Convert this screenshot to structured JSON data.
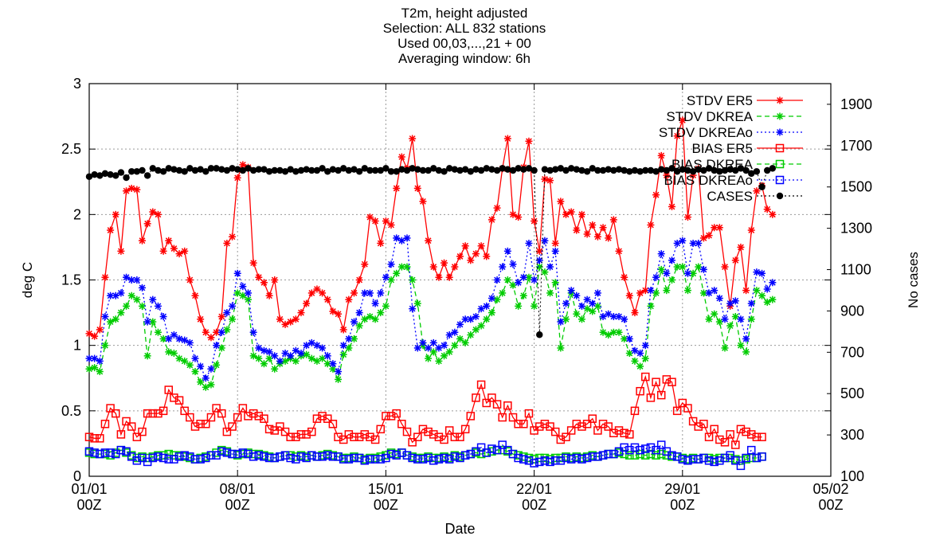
{
  "chart_data": {
    "type": "line",
    "title": [
      "T2m, height adjusted",
      "Selection: ALL    832 stations",
      "Used 00,03,...,21 + 00",
      "Averaging window:  6h"
    ],
    "xlabel": "Date",
    "ylabel": "deg C",
    "y2label": "No cases",
    "xlim": [
      0,
      35
    ],
    "ylim": [
      0,
      3
    ],
    "y2lim": [
      100,
      2000
    ],
    "x_ticks": [
      {
        "x": 0,
        "line1": "01/01",
        "line2": "00Z"
      },
      {
        "x": 7,
        "line1": "08/01",
        "line2": "00Z"
      },
      {
        "x": 14,
        "line1": "15/01",
        "line2": "00Z"
      },
      {
        "x": 21,
        "line1": "22/01",
        "line2": "00Z"
      },
      {
        "x": 28,
        "line1": "29/01",
        "line2": "00Z"
      },
      {
        "x": 35,
        "line1": "05/02",
        "line2": "00Z"
      }
    ],
    "y_ticks": [
      "0",
      "0.5",
      "1",
      "1.5",
      "2",
      "2.5",
      "3"
    ],
    "y2_ticks": [
      "100",
      "300",
      "500",
      "700",
      "900",
      "1100",
      "1300",
      "1500",
      "1700",
      "1900"
    ],
    "grid": true,
    "legend_position": "top-right",
    "x_step_days": 0.25,
    "series": [
      {
        "name": "STDV ER5",
        "color": "#ff0000",
        "style": "solid",
        "marker": "star",
        "axis": "left",
        "values": [
          1.09,
          1.07,
          1.12,
          1.52,
          1.88,
          2.0,
          1.72,
          2.18,
          2.2,
          2.19,
          1.8,
          1.93,
          2.02,
          2.0,
          1.72,
          1.8,
          1.74,
          1.7,
          1.72,
          1.5,
          1.38,
          1.2,
          1.1,
          1.06,
          1.1,
          1.22,
          1.78,
          1.83,
          2.28,
          2.38,
          2.36,
          1.63,
          1.52,
          1.48,
          1.38,
          1.5,
          1.2,
          1.16,
          1.18,
          1.2,
          1.25,
          1.32,
          1.4,
          1.43,
          1.4,
          1.35,
          1.26,
          1.24,
          1.12,
          1.35,
          1.4,
          1.5,
          1.62,
          1.98,
          1.95,
          1.78,
          1.95,
          1.92,
          2.2,
          2.44,
          2.35,
          2.58,
          2.2,
          2.1,
          1.8,
          1.6,
          1.52,
          1.63,
          1.52,
          1.6,
          1.68,
          1.76,
          1.65,
          1.7,
          1.76,
          1.68,
          1.96,
          2.05,
          2.35,
          2.58,
          2.0,
          1.98,
          2.36,
          2.56,
          1.95,
          1.72,
          2.27,
          2.26,
          1.78,
          2.1,
          2.0,
          2.02,
          1.88,
          2.0,
          1.85,
          1.92,
          1.83,
          1.9,
          1.82,
          1.96,
          1.72,
          1.52,
          1.38,
          1.25,
          1.4,
          1.42,
          1.92,
          2.15,
          2.45,
          2.3,
          2.06,
          2.6,
          2.72,
          1.98,
          2.3,
          2.35,
          1.82,
          1.84,
          1.9,
          1.9,
          1.6,
          1.3,
          1.65,
          1.75,
          1.42,
          1.88,
          2.18,
          2.22,
          2.04,
          2.0
        ]
      },
      {
        "name": "STDV DKREA",
        "color": "#00cc00",
        "style": "dashed",
        "marker": "star",
        "axis": "left",
        "values": [
          0.82,
          0.83,
          0.8,
          1.0,
          1.18,
          1.2,
          1.25,
          1.3,
          1.38,
          1.35,
          1.3,
          0.92,
          1.18,
          1.1,
          1.05,
          0.95,
          0.94,
          0.9,
          0.88,
          0.85,
          0.8,
          0.72,
          0.68,
          0.7,
          0.85,
          0.98,
          1.12,
          1.2,
          1.4,
          1.38,
          1.35,
          0.92,
          0.9,
          0.86,
          0.9,
          0.82,
          0.86,
          0.88,
          0.9,
          0.88,
          0.92,
          0.93,
          0.9,
          0.88,
          0.9,
          0.86,
          0.82,
          0.74,
          0.93,
          0.98,
          1.05,
          1.15,
          1.2,
          1.22,
          1.2,
          1.25,
          1.3,
          1.5,
          1.55,
          1.6,
          1.6,
          1.5,
          1.32,
          1.0,
          0.9,
          0.95,
          0.88,
          0.92,
          0.95,
          1.0,
          1.05,
          1.02,
          1.08,
          1.12,
          1.15,
          1.2,
          1.25,
          1.35,
          1.4,
          1.5,
          1.46,
          1.3,
          1.38,
          1.52,
          1.3,
          1.6,
          1.56,
          1.4,
          1.48,
          0.98,
          1.2,
          1.4,
          1.24,
          1.2,
          1.28,
          1.26,
          1.3,
          1.1,
          1.08,
          1.1,
          1.1,
          1.05,
          0.94,
          0.88,
          0.84,
          0.9,
          1.3,
          1.4,
          1.58,
          1.42,
          1.5,
          1.6,
          1.6,
          1.42,
          1.55,
          1.6,
          1.4,
          1.2,
          1.24,
          1.18,
          0.98,
          1.15,
          1.22,
          1.0,
          0.95,
          1.2,
          1.42,
          1.38,
          1.33,
          1.35
        ]
      },
      {
        "name": "STDV DKREAo",
        "color": "#0000ff",
        "style": "dotted",
        "marker": "star",
        "axis": "left",
        "values": [
          0.9,
          0.9,
          0.88,
          1.22,
          1.38,
          1.38,
          1.4,
          1.52,
          1.5,
          1.5,
          1.44,
          1.18,
          1.35,
          1.3,
          1.22,
          1.05,
          1.08,
          1.05,
          1.04,
          1.02,
          0.9,
          0.84,
          0.75,
          0.82,
          1.0,
          1.1,
          1.25,
          1.3,
          1.55,
          1.45,
          1.4,
          1.1,
          0.98,
          0.96,
          0.95,
          0.92,
          0.88,
          0.94,
          0.92,
          0.96,
          0.94,
          1.0,
          1.02,
          1.0,
          0.98,
          0.92,
          0.86,
          0.8,
          1.0,
          1.05,
          1.18,
          1.25,
          1.4,
          1.4,
          1.32,
          1.4,
          1.52,
          1.62,
          1.82,
          1.8,
          1.82,
          1.28,
          0.98,
          1.02,
          0.98,
          1.02,
          0.98,
          1.0,
          1.08,
          1.1,
          1.16,
          1.2,
          1.2,
          1.22,
          1.28,
          1.3,
          1.36,
          1.5,
          1.6,
          1.72,
          1.62,
          1.48,
          1.52,
          1.78,
          1.5,
          1.65,
          1.8,
          1.6,
          1.72,
          1.18,
          1.32,
          1.42,
          1.38,
          1.3,
          1.35,
          1.32,
          1.4,
          1.22,
          1.24,
          1.22,
          1.22,
          1.2,
          1.05,
          0.96,
          0.94,
          1.0,
          1.42,
          1.52,
          1.7,
          1.55,
          1.65,
          1.78,
          1.8,
          1.55,
          1.78,
          1.78,
          1.58,
          1.4,
          1.42,
          1.36,
          1.2,
          1.32,
          1.34,
          1.2,
          1.05,
          1.32,
          1.56,
          1.55,
          1.43,
          1.48
        ]
      },
      {
        "name": "BIAS ER5",
        "color": "#ff0000",
        "style": "solid",
        "marker": "square",
        "axis": "left",
        "values": [
          0.3,
          0.29,
          0.29,
          0.4,
          0.52,
          0.48,
          0.32,
          0.42,
          0.38,
          0.3,
          0.34,
          0.48,
          0.48,
          0.48,
          0.5,
          0.66,
          0.6,
          0.58,
          0.5,
          0.45,
          0.38,
          0.4,
          0.4,
          0.45,
          0.52,
          0.48,
          0.34,
          0.38,
          0.45,
          0.52,
          0.46,
          0.48,
          0.46,
          0.44,
          0.36,
          0.35,
          0.38,
          0.34,
          0.3,
          0.3,
          0.32,
          0.32,
          0.34,
          0.44,
          0.46,
          0.44,
          0.4,
          0.3,
          0.28,
          0.32,
          0.3,
          0.3,
          0.32,
          0.3,
          0.28,
          0.36,
          0.46,
          0.46,
          0.48,
          0.4,
          0.34,
          0.26,
          0.3,
          0.36,
          0.34,
          0.32,
          0.3,
          0.28,
          0.35,
          0.3,
          0.3,
          0.36,
          0.46,
          0.6,
          0.7,
          0.56,
          0.6,
          0.55,
          0.45,
          0.54,
          0.45,
          0.4,
          0.4,
          0.48,
          0.35,
          0.38,
          0.4,
          0.38,
          0.34,
          0.28,
          0.3,
          0.35,
          0.4,
          0.38,
          0.4,
          0.44,
          0.35,
          0.4,
          0.38,
          0.33,
          0.35,
          0.33,
          0.32,
          0.5,
          0.65,
          0.76,
          0.6,
          0.72,
          0.62,
          0.74,
          0.72,
          0.5,
          0.56,
          0.52,
          0.42,
          0.38,
          0.4,
          0.3,
          0.36,
          0.28,
          0.26,
          0.32,
          0.24,
          0.36,
          0.34,
          0.32,
          0.3,
          0.3
        ]
      },
      {
        "name": "BIAS DKREA",
        "color": "#00cc00",
        "style": "dashed",
        "marker": "square",
        "axis": "left",
        "values": [
          0.18,
          0.17,
          0.17,
          0.17,
          0.16,
          0.18,
          0.2,
          0.18,
          0.16,
          0.14,
          0.15,
          0.14,
          0.15,
          0.16,
          0.16,
          0.17,
          0.16,
          0.16,
          0.15,
          0.14,
          0.13,
          0.14,
          0.15,
          0.16,
          0.18,
          0.2,
          0.19,
          0.17,
          0.16,
          0.17,
          0.18,
          0.17,
          0.17,
          0.16,
          0.15,
          0.14,
          0.15,
          0.16,
          0.16,
          0.15,
          0.16,
          0.15,
          0.16,
          0.15,
          0.16,
          0.17,
          0.16,
          0.15,
          0.14,
          0.14,
          0.15,
          0.14,
          0.13,
          0.14,
          0.14,
          0.15,
          0.16,
          0.18,
          0.17,
          0.18,
          0.16,
          0.15,
          0.14,
          0.14,
          0.15,
          0.14,
          0.14,
          0.15,
          0.14,
          0.16,
          0.15,
          0.16,
          0.17,
          0.18,
          0.17,
          0.18,
          0.19,
          0.2,
          0.2,
          0.19,
          0.17,
          0.16,
          0.15,
          0.14,
          0.13,
          0.14,
          0.14,
          0.13,
          0.14,
          0.14,
          0.15,
          0.14,
          0.15,
          0.14,
          0.15,
          0.16,
          0.15,
          0.16,
          0.17,
          0.17,
          0.18,
          0.17,
          0.16,
          0.16,
          0.17,
          0.16,
          0.17,
          0.16,
          0.17,
          0.16,
          0.15,
          0.15,
          0.14,
          0.13,
          0.14,
          0.13,
          0.14,
          0.14,
          0.13,
          0.14,
          0.14,
          0.14,
          0.13,
          0.12,
          0.13,
          0.14,
          0.14,
          0.15
        ]
      },
      {
        "name": "BIAS DKREAo",
        "color": "#0000ff",
        "style": "dotted",
        "marker": "square",
        "axis": "left",
        "values": [
          0.19,
          0.18,
          0.17,
          0.18,
          0.18,
          0.17,
          0.2,
          0.19,
          0.15,
          0.12,
          0.14,
          0.11,
          0.14,
          0.15,
          0.14,
          0.13,
          0.13,
          0.15,
          0.16,
          0.15,
          0.13,
          0.13,
          0.14,
          0.16,
          0.16,
          0.19,
          0.18,
          0.17,
          0.17,
          0.18,
          0.17,
          0.15,
          0.16,
          0.15,
          0.14,
          0.14,
          0.15,
          0.16,
          0.14,
          0.13,
          0.15,
          0.14,
          0.16,
          0.15,
          0.15,
          0.16,
          0.15,
          0.15,
          0.13,
          0.13,
          0.14,
          0.14,
          0.12,
          0.13,
          0.13,
          0.13,
          0.14,
          0.17,
          0.16,
          0.18,
          0.16,
          0.14,
          0.13,
          0.13,
          0.14,
          0.12,
          0.13,
          0.14,
          0.13,
          0.15,
          0.14,
          0.16,
          0.17,
          0.19,
          0.22,
          0.18,
          0.21,
          0.2,
          0.24,
          0.2,
          0.17,
          0.14,
          0.13,
          0.12,
          0.1,
          0.11,
          0.12,
          0.11,
          0.12,
          0.12,
          0.14,
          0.13,
          0.14,
          0.13,
          0.14,
          0.15,
          0.15,
          0.16,
          0.17,
          0.17,
          0.19,
          0.22,
          0.2,
          0.22,
          0.2,
          0.21,
          0.22,
          0.2,
          0.24,
          0.19,
          0.16,
          0.15,
          0.13,
          0.12,
          0.13,
          0.13,
          0.14,
          0.12,
          0.11,
          0.12,
          0.14,
          0.16,
          0.12,
          0.08,
          0.14,
          0.2,
          0.14,
          0.15
        ]
      },
      {
        "name": "CASES",
        "color": "#000000",
        "style": "dotted",
        "marker": "dot",
        "axis": "right",
        "values": [
          1550,
          1560,
          1555,
          1565,
          1560,
          1555,
          1570,
          1545,
          1575,
          1575,
          1580,
          1555,
          1590,
          1580,
          1575,
          1590,
          1585,
          1580,
          1575,
          1590,
          1580,
          1585,
          1575,
          1590,
          1590,
          1585,
          1580,
          1590,
          1585,
          1580,
          1590,
          1580,
          1585,
          1585,
          1575,
          1580,
          1580,
          1575,
          1585,
          1575,
          1580,
          1585,
          1580,
          1580,
          1590,
          1575,
          1585,
          1580,
          1590,
          1580,
          1585,
          1575,
          1590,
          1580,
          1580,
          1580,
          1590,
          1575,
          1575,
          1585,
          1580,
          1590,
          1585,
          1580,
          1580,
          1590,
          1580,
          1575,
          1590,
          1585,
          1580,
          1585,
          1575,
          1585,
          1580,
          1590,
          1585,
          1580,
          1590,
          1585,
          1580,
          1590,
          1585,
          1590,
          1580,
          785,
          1585,
          1580,
          1585,
          1590,
          1580,
          1590,
          1585,
          1580,
          1575,
          1590,
          1580,
          1580,
          1585,
          1580,
          1585,
          1580,
          1575,
          1580,
          1575,
          1580,
          1580,
          1575,
          1585,
          1580,
          1590,
          1575,
          1585,
          1580,
          1575,
          1585,
          1580,
          1590,
          1580,
          1575,
          1580,
          1585,
          1580,
          1590,
          1580,
          1565,
          1575,
          1500,
          1580,
          1590
        ]
      }
    ]
  }
}
